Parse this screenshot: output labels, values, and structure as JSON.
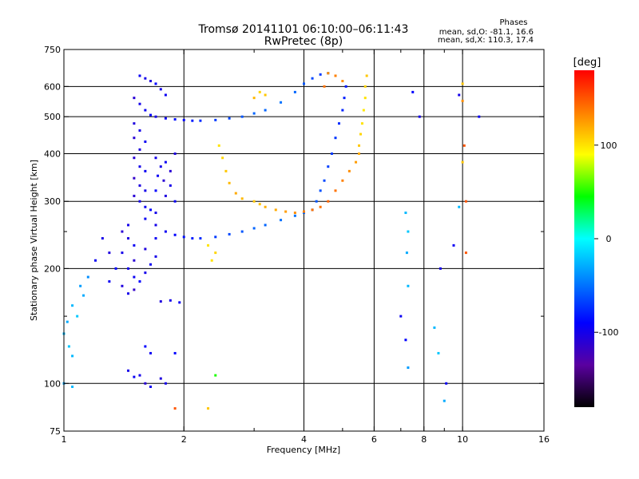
{
  "chart_data": {
    "type": "scatter",
    "title": "Tromsø 20141101 06:10:00–06:11:43",
    "subtitle": "RwPretec (8p)",
    "info": {
      "heading": "Phases",
      "line1": "mean, sd,O: -81.1, 16.6",
      "line2": "mean, sd,X: 110.3, 17.4"
    },
    "xlabel": "Frequency [MHz]",
    "ylabel": "Stationary phase Virtual Height [km]",
    "xscale": "log",
    "yscale": "log",
    "xlim": [
      1,
      16
    ],
    "ylim": [
      75,
      750
    ],
    "xticks": [
      1,
      2,
      4,
      6,
      8,
      10,
      16
    ],
    "xtick_labels": [
      "1",
      "2",
      "4",
      "6",
      "8",
      "10",
      "16"
    ],
    "xminor": [
      3,
      5,
      7,
      9
    ],
    "yticks": [
      75,
      100,
      200,
      300,
      400,
      500,
      600,
      750
    ],
    "ytick_labels": [
      "75",
      "100",
      "200",
      "300",
      "400",
      "500",
      "600",
      "750"
    ],
    "yminor": [
      150,
      250
    ],
    "grid_x": [
      2,
      4,
      6,
      8,
      10
    ],
    "grid_y": [
      100,
      200,
      300,
      400,
      500,
      600
    ],
    "colorbar": {
      "label": "[deg]",
      "range": [
        -180,
        180
      ],
      "ticks": [
        100,
        0,
        -100
      ],
      "tick_labels": [
        "100",
        "0",
        "-100"
      ],
      "stops": [
        "#000000",
        "#5a00a0",
        "#0000ff",
        "#0080ff",
        "#00ffff",
        "#00ff00",
        "#ffff00",
        "#ff8000",
        "#ff0000"
      ]
    },
    "series": [
      {
        "points": [
          [
            1.55,
            640,
            -95
          ],
          [
            1.6,
            630,
            -100
          ],
          [
            1.65,
            620,
            -105
          ],
          [
            1.7,
            610,
            -90
          ],
          [
            1.75,
            590,
            -100
          ],
          [
            1.8,
            570,
            -95
          ],
          [
            1.5,
            560,
            -110
          ],
          [
            1.55,
            540,
            -100
          ],
          [
            1.6,
            520,
            -95
          ],
          [
            1.65,
            505,
            -90
          ],
          [
            1.7,
            500,
            -100
          ],
          [
            1.8,
            495,
            -95
          ],
          [
            1.9,
            492,
            -85
          ],
          [
            2.0,
            490,
            -90
          ],
          [
            2.1,
            488,
            -80
          ],
          [
            2.2,
            488,
            -75
          ],
          [
            2.4,
            490,
            -70
          ],
          [
            2.6,
            495,
            -65
          ],
          [
            2.8,
            500,
            -60
          ],
          [
            3.0,
            510,
            -55
          ],
          [
            3.2,
            520,
            -55
          ],
          [
            3.5,
            545,
            -50
          ],
          [
            3.8,
            580,
            -55
          ],
          [
            4.0,
            610,
            -60
          ],
          [
            4.2,
            630,
            -65
          ],
          [
            4.4,
            645,
            -70
          ],
          [
            4.6,
            650,
            -60
          ],
          [
            1.5,
            480,
            -105
          ],
          [
            1.55,
            460,
            -100
          ],
          [
            1.5,
            440,
            -110
          ],
          [
            1.6,
            430,
            -95
          ],
          [
            1.55,
            410,
            -105
          ],
          [
            1.5,
            390,
            -110
          ],
          [
            1.55,
            370,
            -100
          ],
          [
            1.6,
            360,
            -95
          ],
          [
            1.5,
            345,
            -115
          ],
          [
            1.55,
            330,
            -105
          ],
          [
            1.6,
            320,
            -100
          ],
          [
            1.5,
            310,
            -110
          ],
          [
            1.55,
            300,
            -100
          ],
          [
            1.6,
            290,
            -95
          ],
          [
            1.65,
            285,
            -90
          ],
          [
            1.7,
            280,
            -100
          ],
          [
            1.72,
            350,
            -95
          ],
          [
            1.78,
            340,
            -110
          ],
          [
            1.85,
            330,
            -100
          ],
          [
            1.7,
            320,
            -90
          ],
          [
            1.8,
            310,
            -105
          ],
          [
            1.9,
            300,
            -95
          ],
          [
            1.75,
            370,
            -100
          ],
          [
            1.85,
            360,
            -110
          ],
          [
            1.7,
            390,
            -100
          ],
          [
            1.8,
            380,
            -95
          ],
          [
            1.9,
            400,
            -105
          ],
          [
            1.6,
            270,
            -95
          ],
          [
            1.7,
            260,
            -100
          ],
          [
            1.8,
            250,
            -95
          ],
          [
            1.9,
            245,
            -90
          ],
          [
            2.0,
            242,
            -85
          ],
          [
            2.1,
            240,
            -80
          ],
          [
            2.2,
            240,
            -75
          ],
          [
            2.4,
            242,
            -70
          ],
          [
            2.6,
            246,
            -65
          ],
          [
            2.8,
            250,
            -60
          ],
          [
            3.0,
            255,
            -55
          ],
          [
            3.2,
            260,
            -55
          ],
          [
            3.5,
            268,
            -50
          ],
          [
            3.8,
            275,
            -50
          ],
          [
            4.0,
            280,
            -55
          ],
          [
            4.2,
            285,
            -60
          ],
          [
            4.3,
            300,
            -60
          ],
          [
            4.4,
            320,
            -62
          ],
          [
            4.5,
            340,
            -65
          ],
          [
            4.6,
            370,
            -68
          ],
          [
            4.7,
            400,
            -70
          ],
          [
            4.8,
            440,
            -72
          ],
          [
            4.9,
            480,
            -75
          ],
          [
            5.0,
            520,
            -78
          ],
          [
            5.05,
            560,
            -80
          ],
          [
            5.1,
            600,
            -82
          ],
          [
            1.45,
            260,
            -100
          ],
          [
            1.4,
            250,
            -110
          ],
          [
            1.45,
            240,
            -105
          ],
          [
            1.5,
            230,
            -95
          ],
          [
            1.4,
            220,
            -100
          ],
          [
            1.5,
            210,
            -110
          ],
          [
            1.45,
            200,
            -100
          ],
          [
            1.5,
            190,
            -95
          ],
          [
            1.4,
            180,
            -105
          ],
          [
            1.45,
            172,
            -100
          ],
          [
            1.5,
            176,
            -115
          ],
          [
            1.55,
            185,
            -90
          ],
          [
            1.6,
            195,
            -100
          ],
          [
            1.65,
            205,
            -95
          ],
          [
            1.7,
            215,
            -100
          ],
          [
            1.6,
            225,
            -105
          ],
          [
            1.7,
            240,
            -95
          ],
          [
            1.25,
            240,
            -100
          ],
          [
            1.3,
            220,
            -105
          ],
          [
            1.2,
            210,
            -95
          ],
          [
            1.35,
            200,
            -90
          ],
          [
            1.3,
            185,
            -95
          ],
          [
            1.15,
            190,
            -40
          ],
          [
            1.1,
            180,
            -35
          ],
          [
            1.12,
            170,
            -30
          ],
          [
            1.05,
            160,
            -25
          ],
          [
            1.08,
            150,
            -20
          ],
          [
            1.02,
            145,
            -30
          ],
          [
            1.0,
            135,
            -25
          ],
          [
            1.03,
            125,
            -20
          ],
          [
            1.05,
            118,
            -25
          ],
          [
            1.0,
            100,
            -30
          ],
          [
            1.05,
            98,
            -25
          ],
          [
            1.6,
            125,
            -90
          ],
          [
            1.65,
            120,
            -95
          ],
          [
            1.55,
            105,
            -100
          ],
          [
            1.6,
            100,
            -110
          ],
          [
            1.65,
            98,
            -95
          ],
          [
            1.45,
            108,
            -100
          ],
          [
            1.5,
            104,
            -95
          ],
          [
            1.75,
            103,
            -105
          ],
          [
            1.8,
            100,
            -100
          ],
          [
            1.9,
            120,
            -90
          ],
          [
            1.85,
            165,
            -100
          ],
          [
            1.95,
            163,
            -95
          ],
          [
            1.75,
            164,
            -105
          ]
        ]
      },
      {
        "points": [
          [
            2.45,
            420,
            100
          ],
          [
            2.5,
            390,
            105
          ],
          [
            2.55,
            360,
            110
          ],
          [
            2.6,
            335,
            115
          ],
          [
            2.7,
            315,
            120
          ],
          [
            2.8,
            305,
            115
          ],
          [
            3.0,
            300,
            110
          ],
          [
            3.1,
            295,
            112
          ],
          [
            3.2,
            290,
            118
          ],
          [
            3.4,
            285,
            120
          ],
          [
            3.6,
            282,
            125
          ],
          [
            3.8,
            280,
            130
          ],
          [
            4.0,
            282,
            135
          ],
          [
            4.2,
            285,
            140
          ],
          [
            4.4,
            290,
            140
          ],
          [
            4.6,
            300,
            145
          ],
          [
            4.8,
            320,
            140
          ],
          [
            5.0,
            340,
            135
          ],
          [
            5.2,
            360,
            130
          ],
          [
            5.4,
            380,
            125
          ],
          [
            5.5,
            400,
            120
          ],
          [
            5.5,
            420,
            110
          ],
          [
            5.55,
            450,
            105
          ],
          [
            5.6,
            480,
            100
          ],
          [
            5.65,
            520,
            98
          ],
          [
            5.7,
            560,
            100
          ],
          [
            5.7,
            600,
            105
          ],
          [
            5.75,
            640,
            110
          ],
          [
            4.6,
            650,
            130
          ],
          [
            4.8,
            640,
            135
          ],
          [
            5.0,
            620,
            130
          ],
          [
            4.5,
            600,
            140
          ],
          [
            3.1,
            580,
            105
          ],
          [
            3.2,
            570,
            110
          ],
          [
            3.0,
            560,
            115
          ],
          [
            2.3,
            230,
            100
          ],
          [
            2.4,
            220,
            105
          ],
          [
            2.35,
            210,
            100
          ],
          [
            1.9,
            86,
            150
          ],
          [
            2.3,
            86,
            110
          ],
          [
            2.4,
            105,
            50
          ]
        ]
      },
      {
        "points": [
          [
            7.2,
            280,
            -25
          ],
          [
            7.3,
            250,
            -20
          ],
          [
            7.25,
            220,
            -30
          ],
          [
            7.3,
            180,
            -25
          ],
          [
            7.0,
            150,
            -95
          ],
          [
            7.2,
            130,
            -90
          ],
          [
            7.3,
            110,
            -35
          ],
          [
            8.5,
            140,
            -25
          ],
          [
            8.7,
            120,
            -20
          ],
          [
            9.0,
            90,
            -30
          ],
          [
            9.1,
            100,
            -95
          ],
          [
            8.8,
            200,
            -100
          ],
          [
            9.5,
            230,
            -95
          ],
          [
            9.8,
            290,
            -25
          ],
          [
            10.2,
            300,
            150
          ],
          [
            9.8,
            570,
            -100
          ],
          [
            10.0,
            610,
            110
          ],
          [
            11.0,
            500,
            -95
          ],
          [
            7.5,
            580,
            -90
          ],
          [
            7.8,
            500,
            -100
          ],
          [
            10.1,
            420,
            150
          ],
          [
            10.2,
            220,
            150
          ],
          [
            10.0,
            380,
            110
          ],
          [
            10.0,
            550,
            130
          ]
        ]
      }
    ]
  }
}
